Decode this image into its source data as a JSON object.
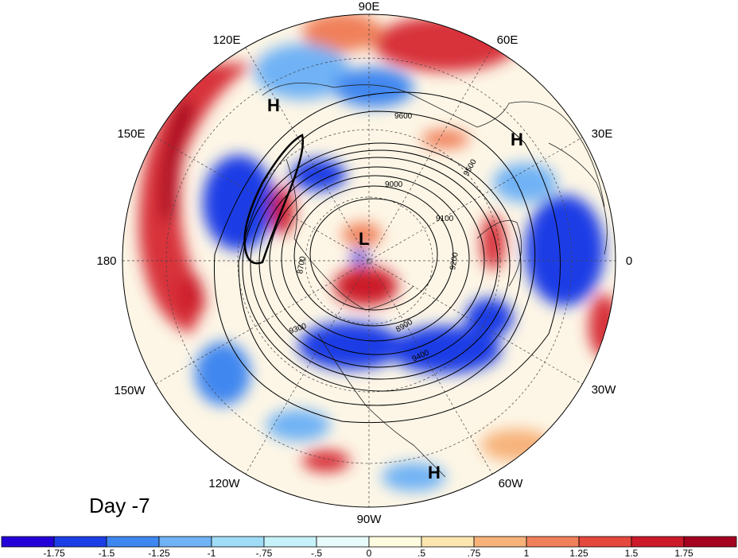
{
  "title": "Day -7",
  "longitude_labels": [
    "90E",
    "60E",
    "30E",
    "0",
    "30W",
    "60W",
    "90W",
    "120W",
    "150W",
    "180",
    "150E",
    "120E"
  ],
  "pressure_systems": [
    {
      "label": "H",
      "region": "East Asia / north Pacific"
    },
    {
      "label": "H",
      "region": "Europe"
    },
    {
      "label": "L",
      "region": "near North Pole"
    },
    {
      "label": "H",
      "region": "subtropical Atlantic off North America"
    }
  ],
  "contour_labels": [
    "9600",
    "9500",
    "9400",
    "9300",
    "9200",
    "9100",
    "9000",
    "8900",
    "8700"
  ],
  "colorbar": {
    "ticks": [
      "-1.75",
      "-1.5",
      "-1.25",
      "-1",
      "-.75",
      "-.5",
      "0",
      ".5",
      ".75",
      "1",
      "1.25",
      "1.5",
      "1.75"
    ],
    "colors": [
      "#2400d8",
      "#1c3ee6",
      "#3f87f0",
      "#6fb2f5",
      "#9fdcf7",
      "#c8f2f9",
      "#e8fbfc",
      "#fefce0",
      "#fde6b0",
      "#f7b27a",
      "#f0805a",
      "#e5483c",
      "#cc1a2a",
      "#a5001f"
    ]
  },
  "colors": {
    "strong_positive": "#a5001f",
    "positive": "#e5483c",
    "neutral": "#fdf8ee",
    "negative": "#3f87f0",
    "strong_negative": "#1c3ee6"
  }
}
